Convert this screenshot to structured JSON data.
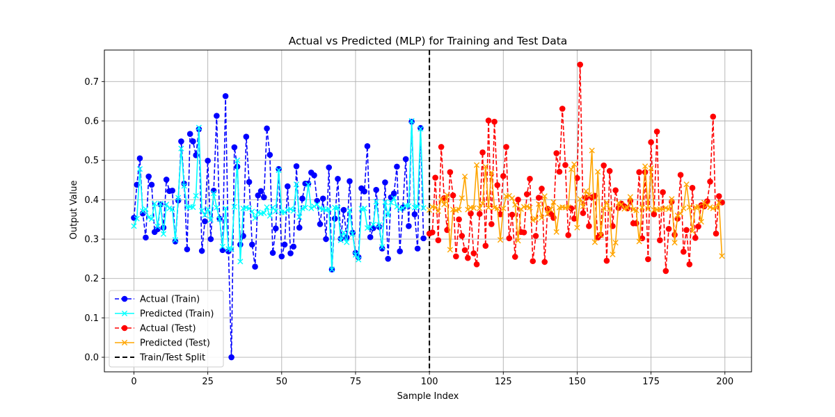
{
  "chart_data": {
    "type": "line",
    "title": "Actual vs Predicted (MLP) for Training and Test Data",
    "xlabel": "Sample Index",
    "ylabel": "Output Value",
    "xlim": [
      -10,
      209
    ],
    "ylim": [
      -0.037,
      0.78
    ],
    "xticks": [
      0,
      25,
      50,
      75,
      100,
      125,
      150,
      175,
      200
    ],
    "yticks": [
      0.0,
      0.1,
      0.2,
      0.3,
      0.4,
      0.5,
      0.6,
      0.7
    ],
    "ytick_labels": [
      "0.0",
      "0.1",
      "0.2",
      "0.3",
      "0.4",
      "0.5",
      "0.6",
      "0.7"
    ],
    "grid": true,
    "legend_position": "lower-left",
    "split": {
      "x": 100,
      "name": "Train/Test Split",
      "color": "#000000"
    },
    "series": [
      {
        "name": "Actual (Train)",
        "color": "#0000ff",
        "marker": "circle",
        "linestyle": "dashed",
        "x_start": 0,
        "values": [
          0.354,
          0.438,
          0.505,
          0.365,
          0.304,
          0.459,
          0.438,
          0.318,
          0.325,
          0.388,
          0.329,
          0.451,
          0.422,
          0.423,
          0.294,
          0.398,
          0.548,
          0.441,
          0.274,
          0.567,
          0.548,
          0.513,
          0.579,
          0.27,
          0.345,
          0.499,
          0.3,
          0.423,
          0.613,
          0.352,
          0.272,
          0.663,
          0.269,
          0.0,
          0.533,
          0.484,
          0.286,
          0.308,
          0.56,
          0.445,
          0.286,
          0.23,
          0.411,
          0.422,
          0.406,
          0.581,
          0.514,
          0.265,
          0.327,
          0.478,
          0.256,
          0.286,
          0.434,
          0.264,
          0.281,
          0.485,
          0.329,
          0.403,
          0.441,
          0.441,
          0.469,
          0.462,
          0.397,
          0.338,
          0.403,
          0.3,
          0.482,
          0.223,
          0.352,
          0.453,
          0.301,
          0.374,
          0.304,
          0.447,
          0.316,
          0.265,
          0.254,
          0.429,
          0.421,
          0.536,
          0.305,
          0.328,
          0.425,
          0.331,
          0.276,
          0.444,
          0.25,
          0.406,
          0.416,
          0.484,
          0.269,
          0.38,
          0.503,
          0.333,
          0.598,
          0.363,
          0.276,
          0.582,
          0.302
        ]
      },
      {
        "name": "Predicted (Train)",
        "color": "#00ffff",
        "marker": "x",
        "linestyle": "solid",
        "x_start": 0,
        "values": [
          0.333,
          0.352,
          0.478,
          0.371,
          0.376,
          0.355,
          0.351,
          0.39,
          0.332,
          0.39,
          0.313,
          0.388,
          0.378,
          0.376,
          0.298,
          0.405,
          0.53,
          0.435,
          0.38,
          0.382,
          0.381,
          0.41,
          0.583,
          0.372,
          0.361,
          0.376,
          0.349,
          0.416,
          0.38,
          0.351,
          0.281,
          0.378,
          0.275,
          0.274,
          0.382,
          0.5,
          0.243,
          0.378,
          0.38,
          0.378,
          0.37,
          0.353,
          0.368,
          0.365,
          0.366,
          0.381,
          0.359,
          0.38,
          0.371,
          0.475,
          0.368,
          0.368,
          0.374,
          0.376,
          0.372,
          0.439,
          0.356,
          0.378,
          0.38,
          0.438,
          0.378,
          0.383,
          0.388,
          0.378,
          0.376,
          0.374,
          0.376,
          0.223,
          0.38,
          0.38,
          0.297,
          0.317,
          0.292,
          0.373,
          0.313,
          0.26,
          0.248,
          0.377,
          0.378,
          0.328,
          0.33,
          0.337,
          0.395,
          0.336,
          0.28,
          0.394,
          0.36,
          0.393,
          0.404,
          0.382,
          0.376,
          0.379,
          0.385,
          0.384,
          0.6,
          0.38,
          0.382,
          0.58,
          0.379
        ]
      },
      {
        "name": "Actual (Test)",
        "color": "#ff0000",
        "marker": "circle",
        "linestyle": "dashed",
        "x_start": 100,
        "values": [
          0.314,
          0.317,
          0.456,
          0.297,
          0.534,
          0.404,
          0.323,
          0.47,
          0.411,
          0.256,
          0.35,
          0.308,
          0.272,
          0.252,
          0.365,
          0.264,
          0.236,
          0.364,
          0.52,
          0.283,
          0.601,
          0.338,
          0.598,
          0.437,
          0.363,
          0.46,
          0.534,
          0.302,
          0.362,
          0.255,
          0.4,
          0.318,
          0.317,
          0.414,
          0.453,
          0.244,
          0.308,
          0.405,
          0.428,
          0.242,
          0.377,
          0.364,
          0.354,
          0.518,
          0.471,
          0.631,
          0.488,
          0.31,
          0.378,
          0.352,
          0.455,
          0.743,
          0.366,
          0.405,
          0.333,
          0.406,
          0.41,
          0.304,
          0.311,
          0.487,
          0.245,
          0.473,
          0.333,
          0.424,
          0.379,
          0.39,
          0.383,
          0.378,
          0.397,
          0.34,
          0.34,
          0.47,
          0.302,
          0.47,
          0.249,
          0.546,
          0.363,
          0.573,
          0.297,
          0.419,
          0.219,
          0.326,
          0.395,
          0.311,
          0.352,
          0.463,
          0.268,
          0.323,
          0.236,
          0.43,
          0.303,
          0.332,
          0.386,
          0.383,
          0.396,
          0.446,
          0.611,
          0.314,
          0.409,
          0.393
        ]
      },
      {
        "name": "Predicted (Test)",
        "color": "#ffa500",
        "marker": "x",
        "linestyle": "solid",
        "x_start": 100,
        "values": [
          0.374,
          0.382,
          0.381,
          0.371,
          0.402,
          0.388,
          0.412,
          0.273,
          0.375,
          0.373,
          0.375,
          0.404,
          0.459,
          0.375,
          0.38,
          0.379,
          0.488,
          0.378,
          0.39,
          0.484,
          0.38,
          0.469,
          0.38,
          0.378,
          0.298,
          0.378,
          0.409,
          0.41,
          0.404,
          0.387,
          0.296,
          0.376,
          0.382,
          0.383,
          0.38,
          0.348,
          0.351,
          0.389,
          0.354,
          0.409,
          0.364,
          0.375,
          0.394,
          0.318,
          0.38,
          0.381,
          0.38,
          0.381,
          0.477,
          0.49,
          0.329,
          0.402,
          0.383,
          0.422,
          0.412,
          0.525,
          0.292,
          0.471,
          0.31,
          0.378,
          0.393,
          0.377,
          0.261,
          0.291,
          0.392,
          0.388,
          0.377,
          0.379,
          0.407,
          0.375,
          0.373,
          0.294,
          0.38,
          0.485,
          0.377,
          0.48,
          0.374,
          0.375,
          0.376,
          0.376,
          0.379,
          0.376,
          0.402,
          0.291,
          0.36,
          0.365,
          0.378,
          0.439,
          0.381,
          0.32,
          0.381,
          0.382,
          0.344,
          0.393,
          0.386,
          0.381,
          0.378,
          0.38,
          0.393,
          0.257
        ]
      }
    ]
  }
}
